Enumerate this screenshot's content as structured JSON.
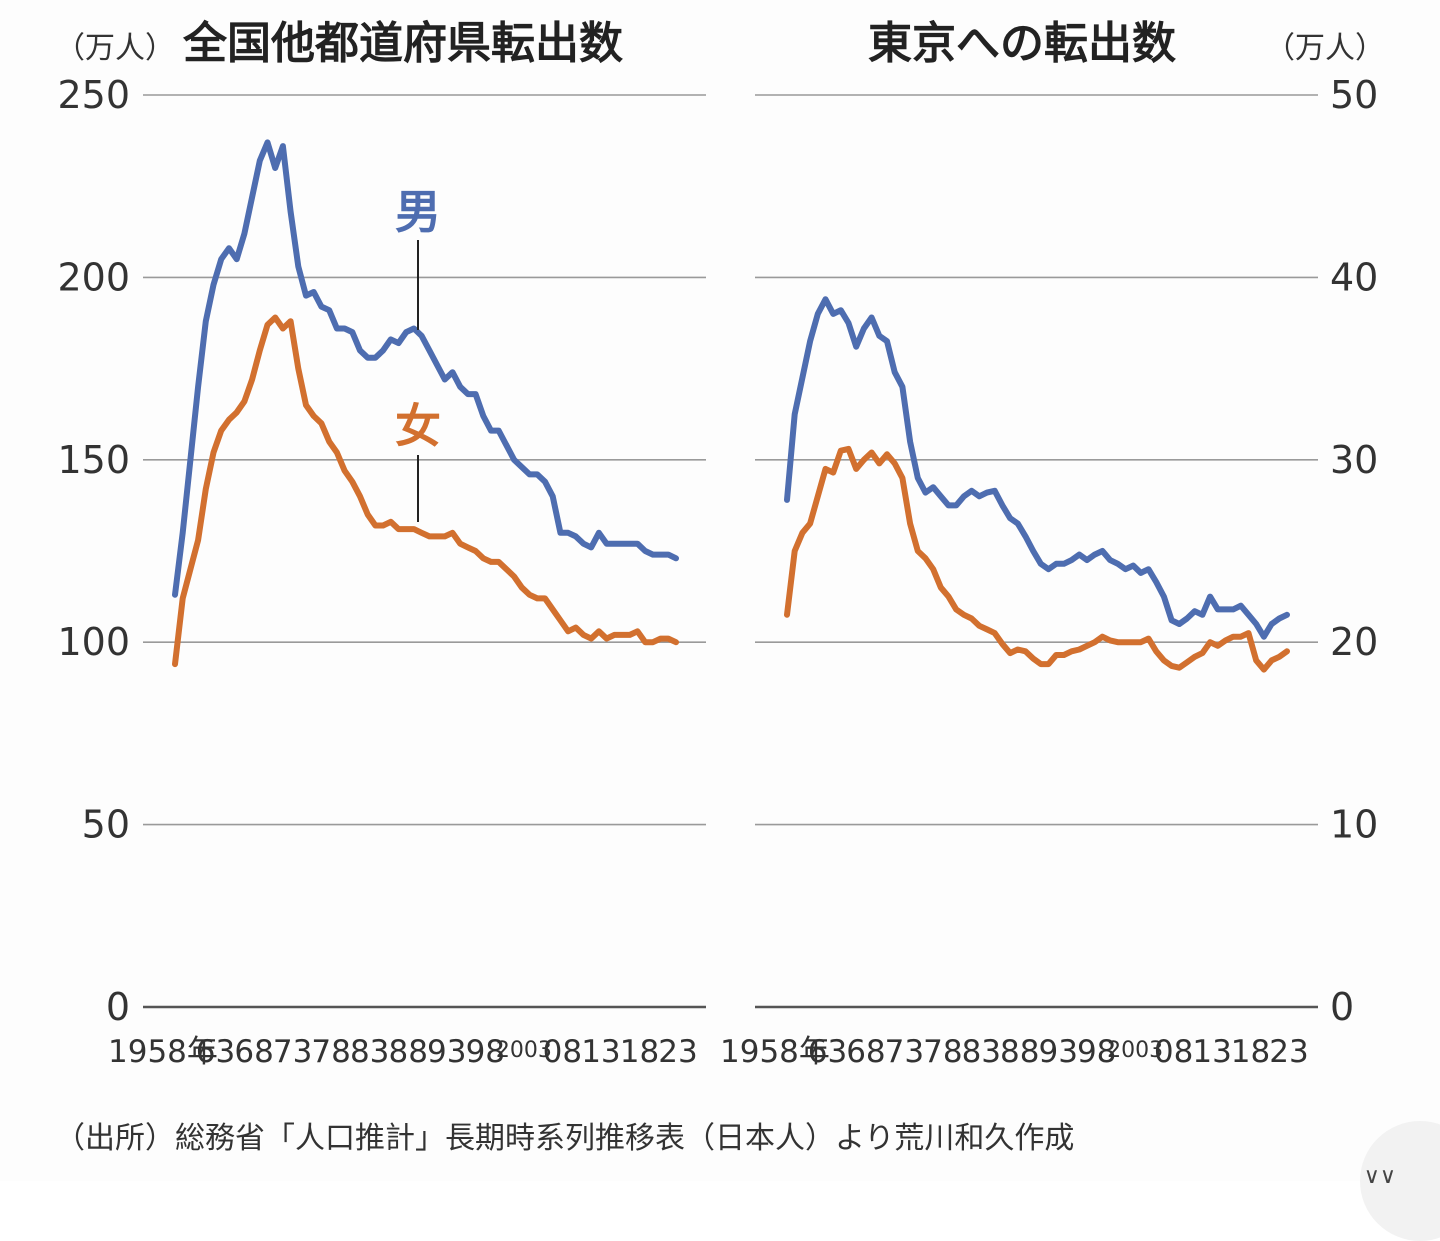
{
  "chart_data": [
    {
      "type": "line",
      "title": "全国他都道府県転出数",
      "unit": "（万人）",
      "ylim": [
        0,
        250
      ],
      "yticks": [
        0,
        50,
        100,
        150,
        200,
        250
      ],
      "x_range": [
        1958,
        2023
      ],
      "x_tick_labels": [
        "1958年",
        "63",
        "68",
        "73",
        "78",
        "83",
        "88",
        "93",
        "98",
        "2003",
        "08",
        "13",
        "18",
        "23"
      ],
      "grid": true,
      "series": [
        {
          "name": "男",
          "color": "#4e6db0",
          "x": [
            1958,
            1959,
            1960,
            1961,
            1962,
            1963,
            1964,
            1965,
            1966,
            1967,
            1968,
            1969,
            1970,
            1971,
            1972,
            1973,
            1974,
            1975,
            1976,
            1977,
            1978,
            1979,
            1980,
            1981,
            1982,
            1983,
            1984,
            1985,
            1986,
            1987,
            1988,
            1989,
            1990,
            1991,
            1992,
            1993,
            1994,
            1995,
            1996,
            1997,
            1998,
            1999,
            2000,
            2001,
            2002,
            2003,
            2004,
            2005,
            2006,
            2007,
            2008,
            2009,
            2010,
            2011,
            2012,
            2013,
            2014,
            2015,
            2016,
            2017,
            2018,
            2019,
            2020,
            2021,
            2022,
            2023
          ],
          "values": [
            113,
            130,
            150,
            170,
            188,
            198,
            205,
            208,
            205,
            212,
            222,
            232,
            237,
            230,
            236,
            218,
            203,
            195,
            196,
            192,
            191,
            186,
            186,
            185,
            180,
            178,
            178,
            180,
            183,
            182,
            185,
            186,
            184,
            180,
            176,
            172,
            174,
            170,
            168,
            168,
            162,
            158,
            158,
            154,
            150,
            148,
            146,
            146,
            144,
            140,
            130,
            130,
            129,
            127,
            126,
            130,
            127,
            127,
            127,
            127,
            127,
            125,
            124,
            124,
            124,
            123
          ]
        },
        {
          "name": "女",
          "color": "#d2702f",
          "x": [
            1958,
            1959,
            1960,
            1961,
            1962,
            1963,
            1964,
            1965,
            1966,
            1967,
            1968,
            1969,
            1970,
            1971,
            1972,
            1973,
            1974,
            1975,
            1976,
            1977,
            1978,
            1979,
            1980,
            1981,
            1982,
            1983,
            1984,
            1985,
            1986,
            1987,
            1988,
            1989,
            1990,
            1991,
            1992,
            1993,
            1994,
            1995,
            1996,
            1997,
            1998,
            1999,
            2000,
            2001,
            2002,
            2003,
            2004,
            2005,
            2006,
            2007,
            2008,
            2009,
            2010,
            2011,
            2012,
            2013,
            2014,
            2015,
            2016,
            2017,
            2018,
            2019,
            2020,
            2021,
            2022,
            2023
          ],
          "values": [
            94,
            112,
            120,
            128,
            142,
            152,
            158,
            161,
            163,
            166,
            172,
            180,
            187,
            189,
            186,
            188,
            175,
            165,
            162,
            160,
            155,
            152,
            147,
            144,
            140,
            135,
            132,
            132,
            133,
            131,
            131,
            131,
            130,
            129,
            129,
            129,
            130,
            127,
            126,
            125,
            123,
            122,
            122,
            120,
            118,
            115,
            113,
            112,
            112,
            109,
            106,
            103,
            104,
            102,
            101,
            103,
            101,
            102,
            102,
            102,
            103,
            100,
            100,
            101,
            101,
            100
          ]
        }
      ]
    },
    {
      "type": "line",
      "title": "東京への転出数",
      "unit": "（万人）",
      "ylim": [
        0,
        50
      ],
      "yticks": [
        0,
        10,
        20,
        30,
        40,
        50
      ],
      "x_range": [
        1958,
        2023
      ],
      "x_tick_labels": [
        "1958年",
        "63",
        "68",
        "73",
        "78",
        "83",
        "88",
        "93",
        "98",
        "2003",
        "08",
        "13",
        "18",
        "23"
      ],
      "grid": true,
      "series": [
        {
          "name": "男",
          "color": "#4e6db0",
          "x": [
            1958,
            1959,
            1960,
            1961,
            1962,
            1963,
            1964,
            1965,
            1966,
            1967,
            1968,
            1969,
            1970,
            1971,
            1972,
            1973,
            1974,
            1975,
            1976,
            1977,
            1978,
            1979,
            1980,
            1981,
            1982,
            1983,
            1984,
            1985,
            1986,
            1987,
            1988,
            1989,
            1990,
            1991,
            1992,
            1993,
            1994,
            1995,
            1996,
            1997,
            1998,
            1999,
            2000,
            2001,
            2002,
            2003,
            2004,
            2005,
            2006,
            2007,
            2008,
            2009,
            2010,
            2011,
            2012,
            2013,
            2014,
            2015,
            2016,
            2017,
            2018,
            2019,
            2020,
            2021,
            2022,
            2023
          ],
          "values": [
            27.8,
            32.5,
            34.5,
            36.5,
            38.0,
            38.8,
            38.0,
            38.2,
            37.5,
            36.2,
            37.2,
            37.8,
            36.8,
            36.5,
            34.8,
            34.0,
            31.0,
            29.0,
            28.2,
            28.5,
            28.0,
            27.5,
            27.5,
            28.0,
            28.3,
            28.0,
            28.2,
            28.3,
            27.5,
            26.8,
            26.5,
            25.8,
            25.0,
            24.3,
            24.0,
            24.3,
            24.3,
            24.5,
            24.8,
            24.5,
            24.8,
            25.0,
            24.5,
            24.3,
            24.0,
            24.2,
            23.8,
            24.0,
            23.3,
            22.5,
            21.2,
            21.0,
            21.3,
            21.7,
            21.5,
            22.5,
            21.8,
            21.8,
            21.8,
            22.0,
            21.5,
            21.0,
            20.3,
            21.0,
            21.3,
            21.5
          ]
        },
        {
          "name": "女",
          "color": "#d2702f",
          "x": [
            1958,
            1959,
            1960,
            1961,
            1962,
            1963,
            1964,
            1965,
            1966,
            1967,
            1968,
            1969,
            1970,
            1971,
            1972,
            1973,
            1974,
            1975,
            1976,
            1977,
            1978,
            1979,
            1980,
            1981,
            1982,
            1983,
            1984,
            1985,
            1986,
            1987,
            1988,
            1989,
            1990,
            1991,
            1992,
            1993,
            1994,
            1995,
            1996,
            1997,
            1998,
            1999,
            2000,
            2001,
            2002,
            2003,
            2004,
            2005,
            2006,
            2007,
            2008,
            2009,
            2010,
            2011,
            2012,
            2013,
            2014,
            2015,
            2016,
            2017,
            2018,
            2019,
            2020,
            2021,
            2022,
            2023
          ],
          "values": [
            21.5,
            25.0,
            26.0,
            26.5,
            28.0,
            29.5,
            29.3,
            30.5,
            30.6,
            29.5,
            30.0,
            30.4,
            29.8,
            30.3,
            29.8,
            29.0,
            26.5,
            25.0,
            24.6,
            24.0,
            23.0,
            22.5,
            21.8,
            21.5,
            21.3,
            20.9,
            20.7,
            20.5,
            19.9,
            19.4,
            19.6,
            19.5,
            19.1,
            18.8,
            18.8,
            19.3,
            19.3,
            19.5,
            19.6,
            19.8,
            20.0,
            20.3,
            20.1,
            20.0,
            20.0,
            20.0,
            20.0,
            20.2,
            19.5,
            19.0,
            18.7,
            18.6,
            18.9,
            19.2,
            19.4,
            20.0,
            19.8,
            20.1,
            20.3,
            20.3,
            20.5,
            19.0,
            18.5,
            19.0,
            19.2,
            19.5
          ]
        }
      ]
    }
  ],
  "source": "（出所）総務省「人口推計」長期時系列推移表（日本人）より荒川和久作成",
  "corner_glyph": "∨∨"
}
